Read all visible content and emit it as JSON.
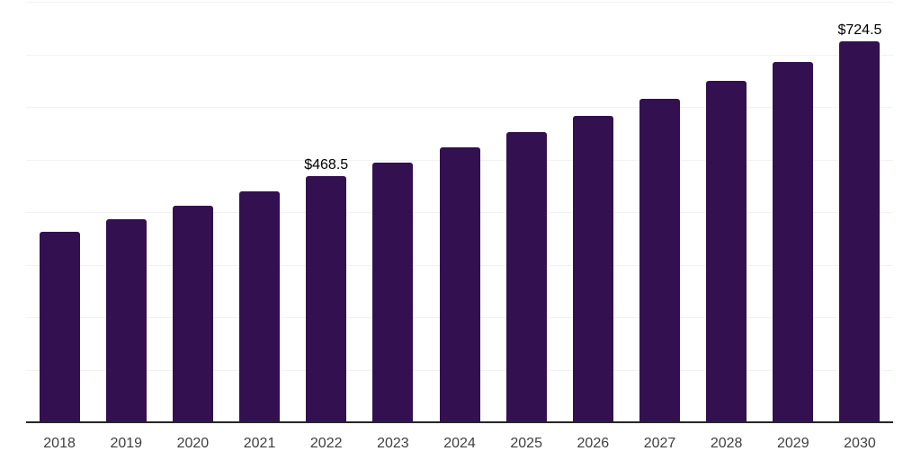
{
  "chart_data": {
    "type": "bar",
    "title": "",
    "xlabel": "",
    "ylabel": "",
    "categories": [
      "2018",
      "2019",
      "2020",
      "2021",
      "2022",
      "2023",
      "2024",
      "2025",
      "2026",
      "2027",
      "2028",
      "2029",
      "2030"
    ],
    "values": [
      362.3,
      386.9,
      412.2,
      439.9,
      468.5,
      494.8,
      522.5,
      551.8,
      582.7,
      615.3,
      649.8,
      686.1,
      724.5
    ],
    "data_labels": [
      {
        "year": "2022",
        "text": "$468.5"
      },
      {
        "year": "2030",
        "text": "$724.5"
      }
    ],
    "ylim": [
      0,
      800
    ],
    "gridline_step": 100,
    "grid": "horizontal-only",
    "legend": "none",
    "y_axis_tick_labels": "none",
    "colors": {
      "bar": "#331150",
      "gridline": "#f2f2f2",
      "axis_line": "#262626",
      "tick_label": "#404040",
      "data_label": "#000000",
      "background": "#ffffff"
    }
  }
}
